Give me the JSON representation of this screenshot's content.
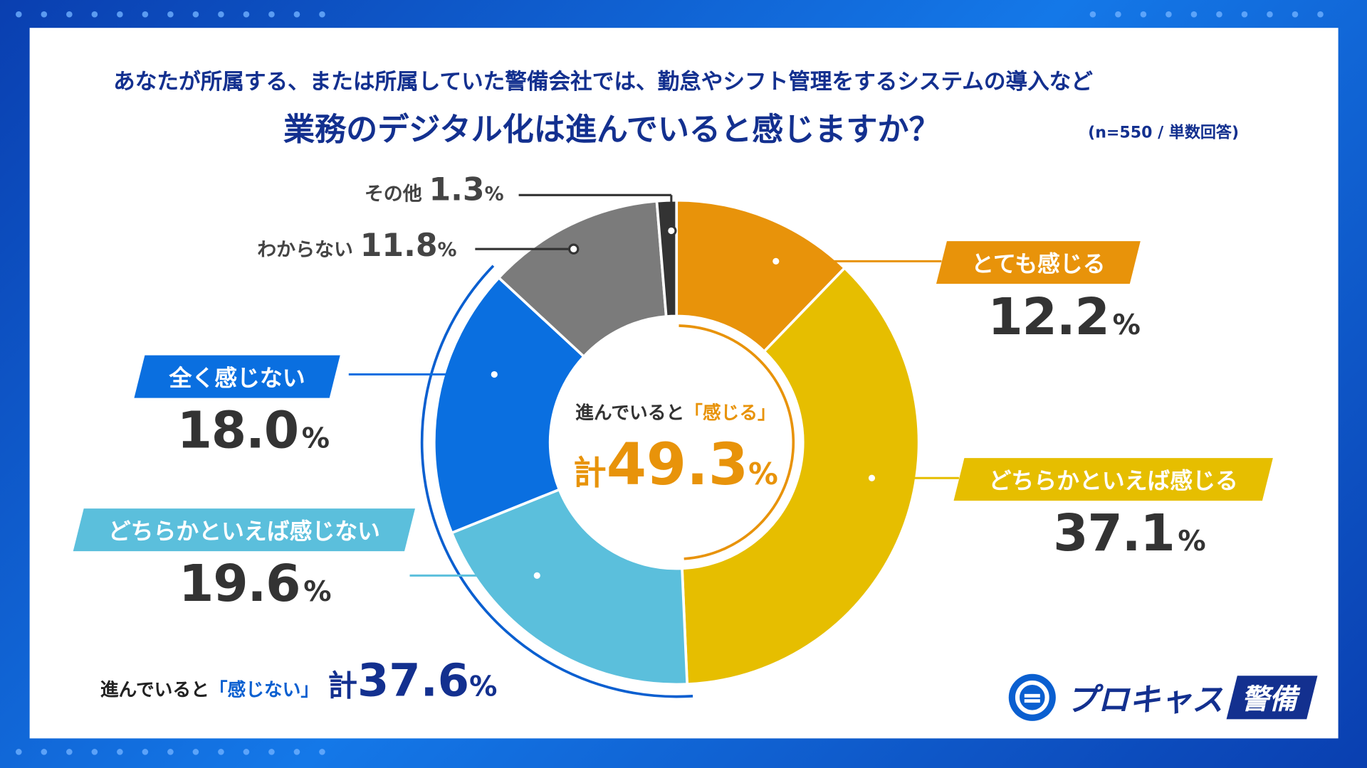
{
  "question_line1": "あなたが所属する、または所属していた警備会社では、勤怠やシフト管理をするシステムの導入など",
  "question_line2": "業務のデジタル化は進んでいると感じますか？",
  "sample_note": "(n=550 / 単数回答)",
  "center": {
    "label_prefix": "進んでいると",
    "label_quote": "「感じる」",
    "total_prefix": "計",
    "total_value": "49.3",
    "unit": "%"
  },
  "bottom_total": {
    "label_prefix": "進んでいると",
    "label_quote": "「感じない」",
    "total_prefix": "計",
    "total_value": "37.6",
    "unit": "%"
  },
  "logo": {
    "text": "プロキャス",
    "badge": "警備"
  },
  "chart_data": {
    "type": "pie",
    "donut": true,
    "direction": "clockwise from top",
    "categories": [
      "とても感じる",
      "どちらかといえば感じる",
      "どちらかといえば感じない",
      "全く感じない",
      "わからない",
      "その他"
    ],
    "values": [
      12.2,
      37.1,
      19.6,
      18.0,
      11.8,
      1.3
    ],
    "labels": [
      "12.2",
      "37.1",
      "19.6",
      "18.0",
      "11.8",
      "1.3"
    ],
    "unit": "%",
    "colors": [
      "#E8930A",
      "#E6BE00",
      "#5BBFDC",
      "#0A6FE0",
      "#7B7B7B",
      "#333333"
    ]
  }
}
